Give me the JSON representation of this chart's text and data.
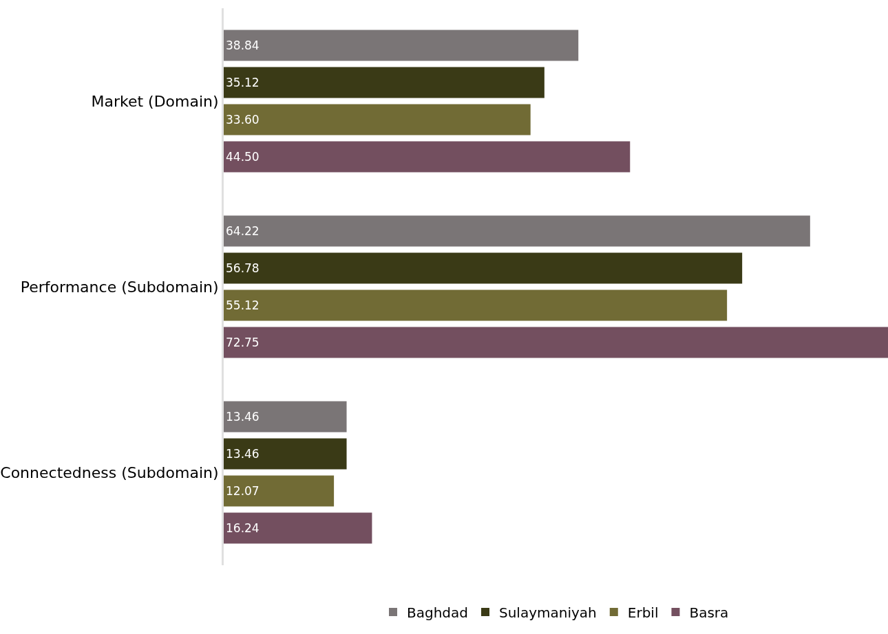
{
  "chart_data": {
    "type": "bar",
    "orientation": "horizontal",
    "categories": [
      "Market (Domain)",
      "Performance (Subdomain)",
      "Connectedness (Subdomain)"
    ],
    "series": [
      {
        "name": "Baghdad",
        "color": "#7a7576",
        "values": [
          38.84,
          64.22,
          13.46
        ],
        "value_labels": [
          "38.84",
          "64.22",
          "13.46"
        ]
      },
      {
        "name": "Sulaymaniyah",
        "color": "#3a3a16",
        "values": [
          35.12,
          56.78,
          13.46
        ],
        "value_labels": [
          "35.12",
          "56.78",
          "13.46"
        ]
      },
      {
        "name": "Erbil",
        "color": "#716b35",
        "values": [
          33.6,
          55.12,
          12.07
        ],
        "value_labels": [
          "33.60",
          "55.12",
          "12.07"
        ]
      },
      {
        "name": "Basra",
        "color": "#734f5f",
        "values": [
          44.5,
          72.75,
          16.24
        ],
        "value_labels": [
          "44.50",
          "72.75",
          "16.24"
        ]
      }
    ],
    "xlim": [
      0,
      72.75
    ],
    "tick_labels": "y",
    "legend": "bottom"
  }
}
